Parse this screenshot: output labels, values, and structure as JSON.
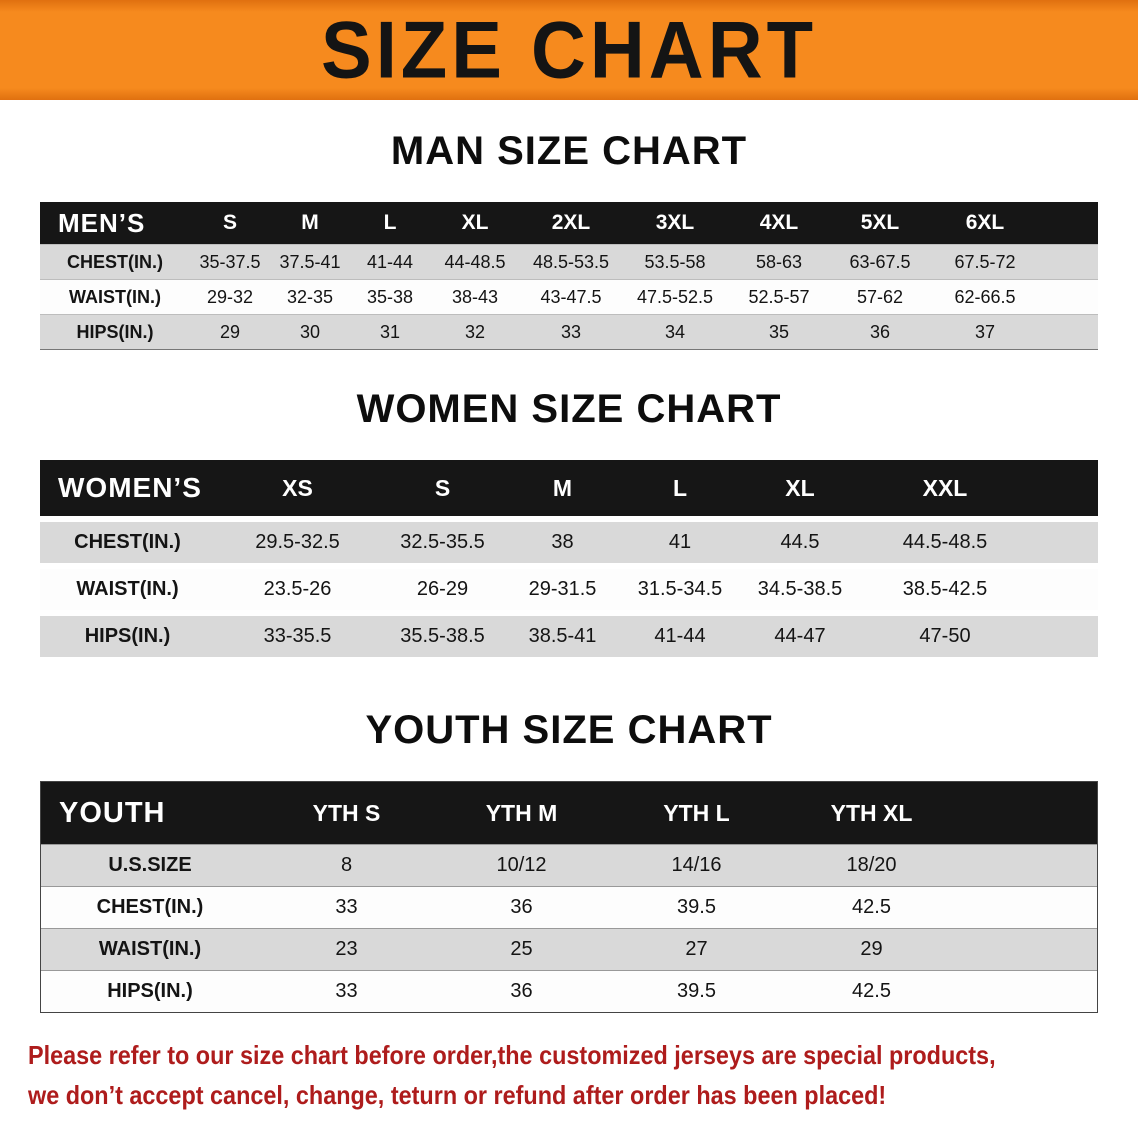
{
  "banner": {
    "title": "SIZE CHART",
    "bg_color": "#F68A1E"
  },
  "chart_data": [
    {
      "type": "table",
      "title": "MAN SIZE CHART",
      "corner_label": "MEN’S",
      "columns": [
        "S",
        "M",
        "L",
        "XL",
        "2XL",
        "3XL",
        "4XL",
        "5XL",
        "6XL"
      ],
      "rows": [
        {
          "label": "CHEST(IN.)",
          "values": [
            "35-37.5",
            "37.5-41",
            "41-44",
            "44-48.5",
            "48.5-53.5",
            "53.5-58",
            "58-63",
            "63-67.5",
            "67.5-72"
          ]
        },
        {
          "label": "WAIST(IN.)",
          "values": [
            "29-32",
            "32-35",
            "35-38",
            "38-43",
            "43-47.5",
            "47.5-52.5",
            "52.5-57",
            "57-62",
            "62-66.5"
          ]
        },
        {
          "label": "HIPS(IN.)",
          "values": [
            "29",
            "30",
            "31",
            "32",
            "33",
            "34",
            "35",
            "36",
            "37"
          ]
        }
      ]
    },
    {
      "type": "table",
      "title": "WOMEN SIZE CHART",
      "corner_label": "WOMEN’S",
      "columns": [
        "XS",
        "S",
        "M",
        "L",
        "XL",
        "XXL"
      ],
      "rows": [
        {
          "label": "CHEST(IN.)",
          "values": [
            "29.5-32.5",
            "32.5-35.5",
            "38",
            "41",
            "44.5",
            "44.5-48.5"
          ]
        },
        {
          "label": "WAIST(IN.)",
          "values": [
            "23.5-26",
            "26-29",
            "29-31.5",
            "31.5-34.5",
            "34.5-38.5",
            "38.5-42.5"
          ]
        },
        {
          "label": "HIPS(IN.)",
          "values": [
            "33-35.5",
            "35.5-38.5",
            "38.5-41",
            "41-44",
            "44-47",
            "47-50"
          ]
        }
      ]
    },
    {
      "type": "table",
      "title": "YOUTH SIZE CHART",
      "corner_label": "YOUTH",
      "columns": [
        "YTH S",
        "YTH M",
        "YTH L",
        "YTH XL"
      ],
      "rows": [
        {
          "label": "U.S.SIZE",
          "values": [
            "8",
            "10/12",
            "14/16",
            "18/20"
          ]
        },
        {
          "label": "CHEST(IN.)",
          "values": [
            "33",
            "36",
            "39.5",
            "42.5"
          ]
        },
        {
          "label": "WAIST(IN.)",
          "values": [
            "23",
            "25",
            "27",
            "29"
          ]
        },
        {
          "label": "HIPS(IN.)",
          "values": [
            "33",
            "36",
            "39.5",
            "42.5"
          ]
        }
      ]
    }
  ],
  "footer": {
    "line1": "Please refer to our size chart before order,the customized jerseys are special products,",
    "line2": "we don’t accept cancel, change, teturn or refund after order has been placed!",
    "text_color": "#AE1C1C"
  }
}
